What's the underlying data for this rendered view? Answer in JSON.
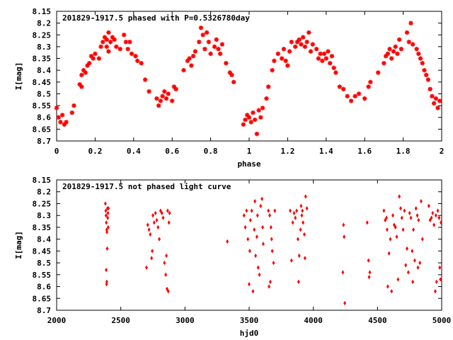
{
  "chart_data": [
    {
      "type": "scatter",
      "title": "201829-1917.5 phased with P=0.5326780day",
      "xlabel": "phase",
      "ylabel": "I[mag]",
      "xlim": [
        0,
        2
      ],
      "ylim": [
        8.7,
        8.15
      ],
      "y_inverted": true,
      "grid": false,
      "marker_color": "#ff0000",
      "marker": "star",
      "x_ticks": [
        "0",
        "0.2",
        "0.4",
        "0.6",
        "0.8",
        "1",
        "1.2",
        "1.4",
        "1.6",
        "1.8",
        "2"
      ],
      "y_ticks": [
        "8.15",
        "8.2",
        "8.25",
        "8.3",
        "8.35",
        "8.4",
        "8.45",
        "8.5",
        "8.55",
        "8.6",
        "8.65",
        "8.7"
      ],
      "points": [
        [
          0.0,
          8.56
        ],
        [
          0.01,
          8.6
        ],
        [
          0.02,
          8.62
        ],
        [
          0.03,
          8.59
        ],
        [
          0.04,
          8.63
        ],
        [
          0.05,
          8.62
        ],
        [
          0.08,
          8.58
        ],
        [
          0.09,
          8.55
        ],
        [
          0.12,
          8.46
        ],
        [
          0.13,
          8.47
        ],
        [
          0.13,
          8.42
        ],
        [
          0.14,
          8.4
        ],
        [
          0.15,
          8.41
        ],
        [
          0.16,
          8.38
        ],
        [
          0.17,
          8.37
        ],
        [
          0.18,
          8.34
        ],
        [
          0.19,
          8.35
        ],
        [
          0.2,
          8.33
        ],
        [
          0.22,
          8.35
        ],
        [
          0.23,
          8.3
        ],
        [
          0.24,
          8.28
        ],
        [
          0.25,
          8.26
        ],
        [
          0.26,
          8.3
        ],
        [
          0.26,
          8.27
        ],
        [
          0.27,
          8.24
        ],
        [
          0.27,
          8.32
        ],
        [
          0.28,
          8.28
        ],
        [
          0.29,
          8.26
        ],
        [
          0.3,
          8.27
        ],
        [
          0.31,
          8.3
        ],
        [
          0.33,
          8.31
        ],
        [
          0.35,
          8.25
        ],
        [
          0.36,
          8.28
        ],
        [
          0.37,
          8.31
        ],
        [
          0.38,
          8.28
        ],
        [
          0.39,
          8.33
        ],
        [
          0.41,
          8.34
        ],
        [
          0.42,
          8.36
        ],
        [
          0.44,
          8.37
        ],
        [
          0.46,
          8.44
        ],
        [
          0.48,
          8.49
        ],
        [
          0.52,
          8.52
        ],
        [
          0.53,
          8.55
        ],
        [
          0.54,
          8.53
        ],
        [
          0.55,
          8.51
        ],
        [
          0.56,
          8.49
        ],
        [
          0.57,
          8.52
        ],
        [
          0.58,
          8.5
        ],
        [
          0.6,
          8.53
        ],
        [
          0.61,
          8.47
        ],
        [
          0.62,
          8.48
        ],
        [
          0.66,
          8.4
        ],
        [
          0.68,
          8.36
        ],
        [
          0.69,
          8.35
        ],
        [
          0.7,
          8.38
        ],
        [
          0.71,
          8.34
        ],
        [
          0.72,
          8.32
        ],
        [
          0.74,
          8.28
        ],
        [
          0.75,
          8.22
        ],
        [
          0.76,
          8.25
        ],
        [
          0.77,
          8.31
        ],
        [
          0.78,
          8.24
        ],
        [
          0.79,
          8.28
        ],
        [
          0.8,
          8.33
        ],
        [
          0.82,
          8.3
        ],
        [
          0.83,
          8.27
        ],
        [
          0.84,
          8.31
        ],
        [
          0.85,
          8.33
        ],
        [
          0.86,
          8.29
        ],
        [
          0.88,
          8.37
        ],
        [
          0.9,
          8.41
        ],
        [
          0.91,
          8.42
        ],
        [
          0.92,
          8.45
        ],
        [
          0.97,
          8.63
        ],
        [
          0.98,
          8.61
        ],
        [
          0.99,
          8.59
        ],
        [
          1.0,
          8.6
        ],
        [
          1.01,
          8.62
        ],
        [
          1.02,
          8.58
        ],
        [
          1.03,
          8.61
        ],
        [
          1.04,
          8.67
        ],
        [
          1.05,
          8.57
        ],
        [
          1.06,
          8.6
        ],
        [
          1.07,
          8.56
        ],
        [
          1.09,
          8.52
        ],
        [
          1.1,
          8.47
        ],
        [
          1.12,
          8.4
        ],
        [
          1.13,
          8.36
        ],
        [
          1.15,
          8.33
        ],
        [
          1.17,
          8.35
        ],
        [
          1.18,
          8.31
        ],
        [
          1.19,
          8.36
        ],
        [
          1.2,
          8.38
        ],
        [
          1.21,
          8.32
        ],
        [
          1.22,
          8.28
        ],
        [
          1.24,
          8.3
        ],
        [
          1.25,
          8.28
        ],
        [
          1.26,
          8.27
        ],
        [
          1.27,
          8.29
        ],
        [
          1.28,
          8.26
        ],
        [
          1.29,
          8.3
        ],
        [
          1.3,
          8.28
        ],
        [
          1.31,
          8.24
        ],
        [
          1.32,
          8.32
        ],
        [
          1.33,
          8.29
        ],
        [
          1.35,
          8.31
        ],
        [
          1.36,
          8.35
        ],
        [
          1.37,
          8.33
        ],
        [
          1.38,
          8.36
        ],
        [
          1.39,
          8.33
        ],
        [
          1.4,
          8.35
        ],
        [
          1.41,
          8.32
        ],
        [
          1.42,
          8.37
        ],
        [
          1.43,
          8.34
        ],
        [
          1.44,
          8.39
        ],
        [
          1.45,
          8.41
        ],
        [
          1.47,
          8.47
        ],
        [
          1.49,
          8.48
        ],
        [
          1.51,
          8.51
        ],
        [
          1.53,
          8.53
        ],
        [
          1.55,
          8.51
        ],
        [
          1.57,
          8.5
        ],
        [
          1.6,
          8.52
        ],
        [
          1.62,
          8.47
        ],
        [
          1.63,
          8.45
        ],
        [
          1.67,
          8.41
        ],
        [
          1.7,
          8.37
        ],
        [
          1.71,
          8.34
        ],
        [
          1.72,
          8.33
        ],
        [
          1.73,
          8.31
        ],
        [
          1.74,
          8.35
        ],
        [
          1.75,
          8.32
        ],
        [
          1.76,
          8.3
        ],
        [
          1.77,
          8.33
        ],
        [
          1.78,
          8.27
        ],
        [
          1.79,
          8.31
        ],
        [
          1.82,
          8.24
        ],
        [
          1.83,
          8.28
        ],
        [
          1.84,
          8.2
        ],
        [
          1.85,
          8.29
        ],
        [
          1.87,
          8.31
        ],
        [
          1.88,
          8.33
        ],
        [
          1.89,
          8.35
        ],
        [
          1.9,
          8.37
        ],
        [
          1.91,
          8.4
        ],
        [
          1.92,
          8.42
        ],
        [
          1.93,
          8.44
        ],
        [
          1.94,
          8.48
        ],
        [
          1.95,
          8.51
        ],
        [
          1.96,
          8.54
        ],
        [
          1.97,
          8.52
        ],
        [
          1.98,
          8.56
        ],
        [
          1.99,
          8.53
        ]
      ]
    },
    {
      "type": "scatter",
      "title": "201829-1917.5 not phased light curve",
      "xlabel": "hjd0",
      "ylabel": "I[mag]",
      "xlim": [
        2000,
        5000
      ],
      "ylim": [
        8.7,
        8.15
      ],
      "y_inverted": true,
      "grid": false,
      "marker_color": "#ff0000",
      "marker": "diamond",
      "x_ticks": [
        "2000",
        "2500",
        "3000",
        "3500",
        "4000",
        "4500",
        "5000"
      ],
      "y_ticks": [
        "8.15",
        "8.2",
        "8.25",
        "8.3",
        "8.35",
        "8.4",
        "8.45",
        "8.5",
        "8.55",
        "8.6",
        "8.65",
        "8.7"
      ],
      "points": [
        [
          2380,
          8.25
        ],
        [
          2383,
          8.28
        ],
        [
          2385,
          8.3
        ],
        [
          2387,
          8.33
        ],
        [
          2390,
          8.36
        ],
        [
          2392,
          8.37
        ],
        [
          2386,
          8.53
        ],
        [
          2389,
          8.59
        ],
        [
          2391,
          8.58
        ],
        [
          2394,
          8.44
        ],
        [
          2396,
          8.27
        ],
        [
          2398,
          8.31
        ],
        [
          2400,
          8.29
        ],
        [
          2402,
          8.35
        ],
        [
          2404,
          8.27
        ],
        [
          2700,
          8.52
        ],
        [
          2710,
          8.34
        ],
        [
          2720,
          8.36
        ],
        [
          2730,
          8.38
        ],
        [
          2740,
          8.48
        ],
        [
          2745,
          8.45
        ],
        [
          2750,
          8.3
        ],
        [
          2760,
          8.33
        ],
        [
          2770,
          8.29
        ],
        [
          2780,
          8.32
        ],
        [
          2790,
          8.35
        ],
        [
          2800,
          8.4
        ],
        [
          2810,
          8.28
        ],
        [
          2820,
          8.29
        ],
        [
          2830,
          8.31
        ],
        [
          2840,
          8.5
        ],
        [
          2850,
          8.55
        ],
        [
          2855,
          8.47
        ],
        [
          2860,
          8.61
        ],
        [
          2865,
          8.28
        ],
        [
          2870,
          8.62
        ],
        [
          2875,
          8.33
        ],
        [
          2880,
          8.29
        ],
        [
          3330,
          8.41
        ],
        [
          3460,
          8.3
        ],
        [
          3470,
          8.35
        ],
        [
          3480,
          8.28
        ],
        [
          3490,
          8.4
        ],
        [
          3500,
          8.59
        ],
        [
          3505,
          8.45
        ],
        [
          3510,
          8.32
        ],
        [
          3520,
          8.28
        ],
        [
          3530,
          8.62
        ],
        [
          3540,
          8.36
        ],
        [
          3545,
          8.24
        ],
        [
          3550,
          8.47
        ],
        [
          3560,
          8.39
        ],
        [
          3565,
          8.3
        ],
        [
          3570,
          8.52
        ],
        [
          3580,
          8.55
        ],
        [
          3590,
          8.26
        ],
        [
          3600,
          8.23
        ],
        [
          3605,
          8.35
        ],
        [
          3610,
          8.42
        ],
        [
          3650,
          8.28
        ],
        [
          3655,
          8.6
        ],
        [
          3660,
          8.3
        ],
        [
          3665,
          8.58
        ],
        [
          3670,
          8.35
        ],
        [
          3675,
          8.4
        ],
        [
          3680,
          8.45
        ],
        [
          3690,
          8.5
        ],
        [
          3700,
          8.28
        ],
        [
          3820,
          8.28
        ],
        [
          3830,
          8.49
        ],
        [
          3840,
          8.33
        ],
        [
          3850,
          8.29
        ],
        [
          3860,
          8.31
        ],
        [
          3870,
          8.28
        ],
        [
          3880,
          8.4
        ],
        [
          3885,
          8.58
        ],
        [
          3890,
          8.47
        ],
        [
          3900,
          8.36
        ],
        [
          3905,
          8.26
        ],
        [
          3910,
          8.3
        ],
        [
          3915,
          8.28
        ],
        [
          3920,
          8.33
        ],
        [
          3930,
          8.38
        ],
        [
          3935,
          8.48
        ],
        [
          3940,
          8.22
        ],
        [
          3950,
          8.27
        ],
        [
          4230,
          8.54
        ],
        [
          4235,
          8.34
        ],
        [
          4240,
          8.39
        ],
        [
          4245,
          8.67
        ],
        [
          4420,
          8.33
        ],
        [
          4430,
          8.49
        ],
        [
          4435,
          8.56
        ],
        [
          4440,
          8.54
        ],
        [
          4550,
          8.28
        ],
        [
          4560,
          8.32
        ],
        [
          4570,
          8.31
        ],
        [
          4575,
          8.36
        ],
        [
          4580,
          8.6
        ],
        [
          4590,
          8.46
        ],
        [
          4600,
          8.4
        ],
        [
          4610,
          8.62
        ],
        [
          4620,
          8.3
        ],
        [
          4630,
          8.34
        ],
        [
          4640,
          8.35
        ],
        [
          4650,
          8.39
        ],
        [
          4660,
          8.57
        ],
        [
          4670,
          8.22
        ],
        [
          4680,
          8.27
        ],
        [
          4690,
          8.31
        ],
        [
          4700,
          8.36
        ],
        [
          4710,
          8.28
        ],
        [
          4720,
          8.51
        ],
        [
          4730,
          8.44
        ],
        [
          4740,
          8.54
        ],
        [
          4750,
          8.29
        ],
        [
          4760,
          8.31
        ],
        [
          4770,
          8.45
        ],
        [
          4775,
          8.58
        ],
        [
          4780,
          8.36
        ],
        [
          4790,
          8.49
        ],
        [
          4800,
          8.27
        ],
        [
          4810,
          8.3
        ],
        [
          4815,
          8.52
        ],
        [
          4820,
          8.32
        ],
        [
          4830,
          8.5
        ],
        [
          4840,
          8.24
        ],
        [
          4850,
          8.4
        ],
        [
          4900,
          8.26
        ],
        [
          4910,
          8.32
        ],
        [
          4920,
          8.31
        ],
        [
          4930,
          8.29
        ],
        [
          4940,
          8.34
        ],
        [
          4950,
          8.62
        ],
        [
          4955,
          8.3
        ],
        [
          4960,
          8.58
        ],
        [
          4970,
          8.28
        ],
        [
          4980,
          8.31
        ],
        [
          4985,
          8.52
        ],
        [
          4990,
          8.57
        ],
        [
          4995,
          8.33
        ]
      ]
    }
  ]
}
